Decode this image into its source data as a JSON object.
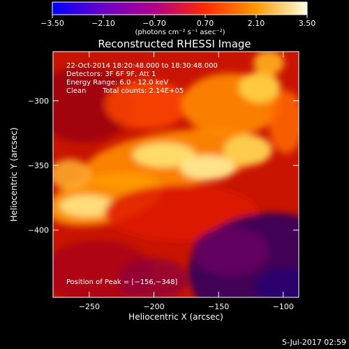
{
  "chart_data": {
    "type": "heatmap",
    "title": "Reconstructed RHESSI Image",
    "xlabel": "Heliocentric X (arcsec)",
    "ylabel": "Heliocentric Y (arcsec)",
    "xlim": [
      -278,
      -88
    ],
    "ylim": [
      -452,
      -262
    ],
    "x_ticks": [
      -250,
      -200,
      -150,
      -100
    ],
    "x_tick_labels": [
      "−250",
      "−200",
      "−150",
      "−100"
    ],
    "y_ticks": [
      -300,
      -350,
      -400
    ],
    "y_tick_labels": [
      "−300",
      "−350",
      "−400"
    ],
    "colorbar": {
      "range": [
        -3.5,
        3.5
      ],
      "ticks": [
        -3.5,
        -2.1,
        -0.7,
        0.7,
        2.1,
        3.5
      ],
      "tick_labels": [
        "−3.50",
        "−2.10",
        "−0.70",
        "0.70",
        "2.10",
        "3.50"
      ],
      "colors": [
        "#0000ff",
        "#6a00c8",
        "#b0008c",
        "#ff2a00",
        "#ff9a00",
        "#ffffe0"
      ]
    },
    "colorbar_unit": "(photons cm⁻² s⁻¹ asec⁻²)",
    "annotations": {
      "time": "22-Oct-2014 18:20:48.000 to 18:30:48.000",
      "detectors": "Detectors: 3F 6F 9F, Att 1",
      "energy": "Energy Range: 6.0 - 12.0 keV",
      "clean": "Clean",
      "counts": "Total counts: 2.14E+05",
      "peak": "Position of Peak = [−156,−348]"
    },
    "peak": [
      -156,
      -348
    ],
    "grid": false
  },
  "footer": {
    "date": "5-Jul-2017 02:59"
  }
}
